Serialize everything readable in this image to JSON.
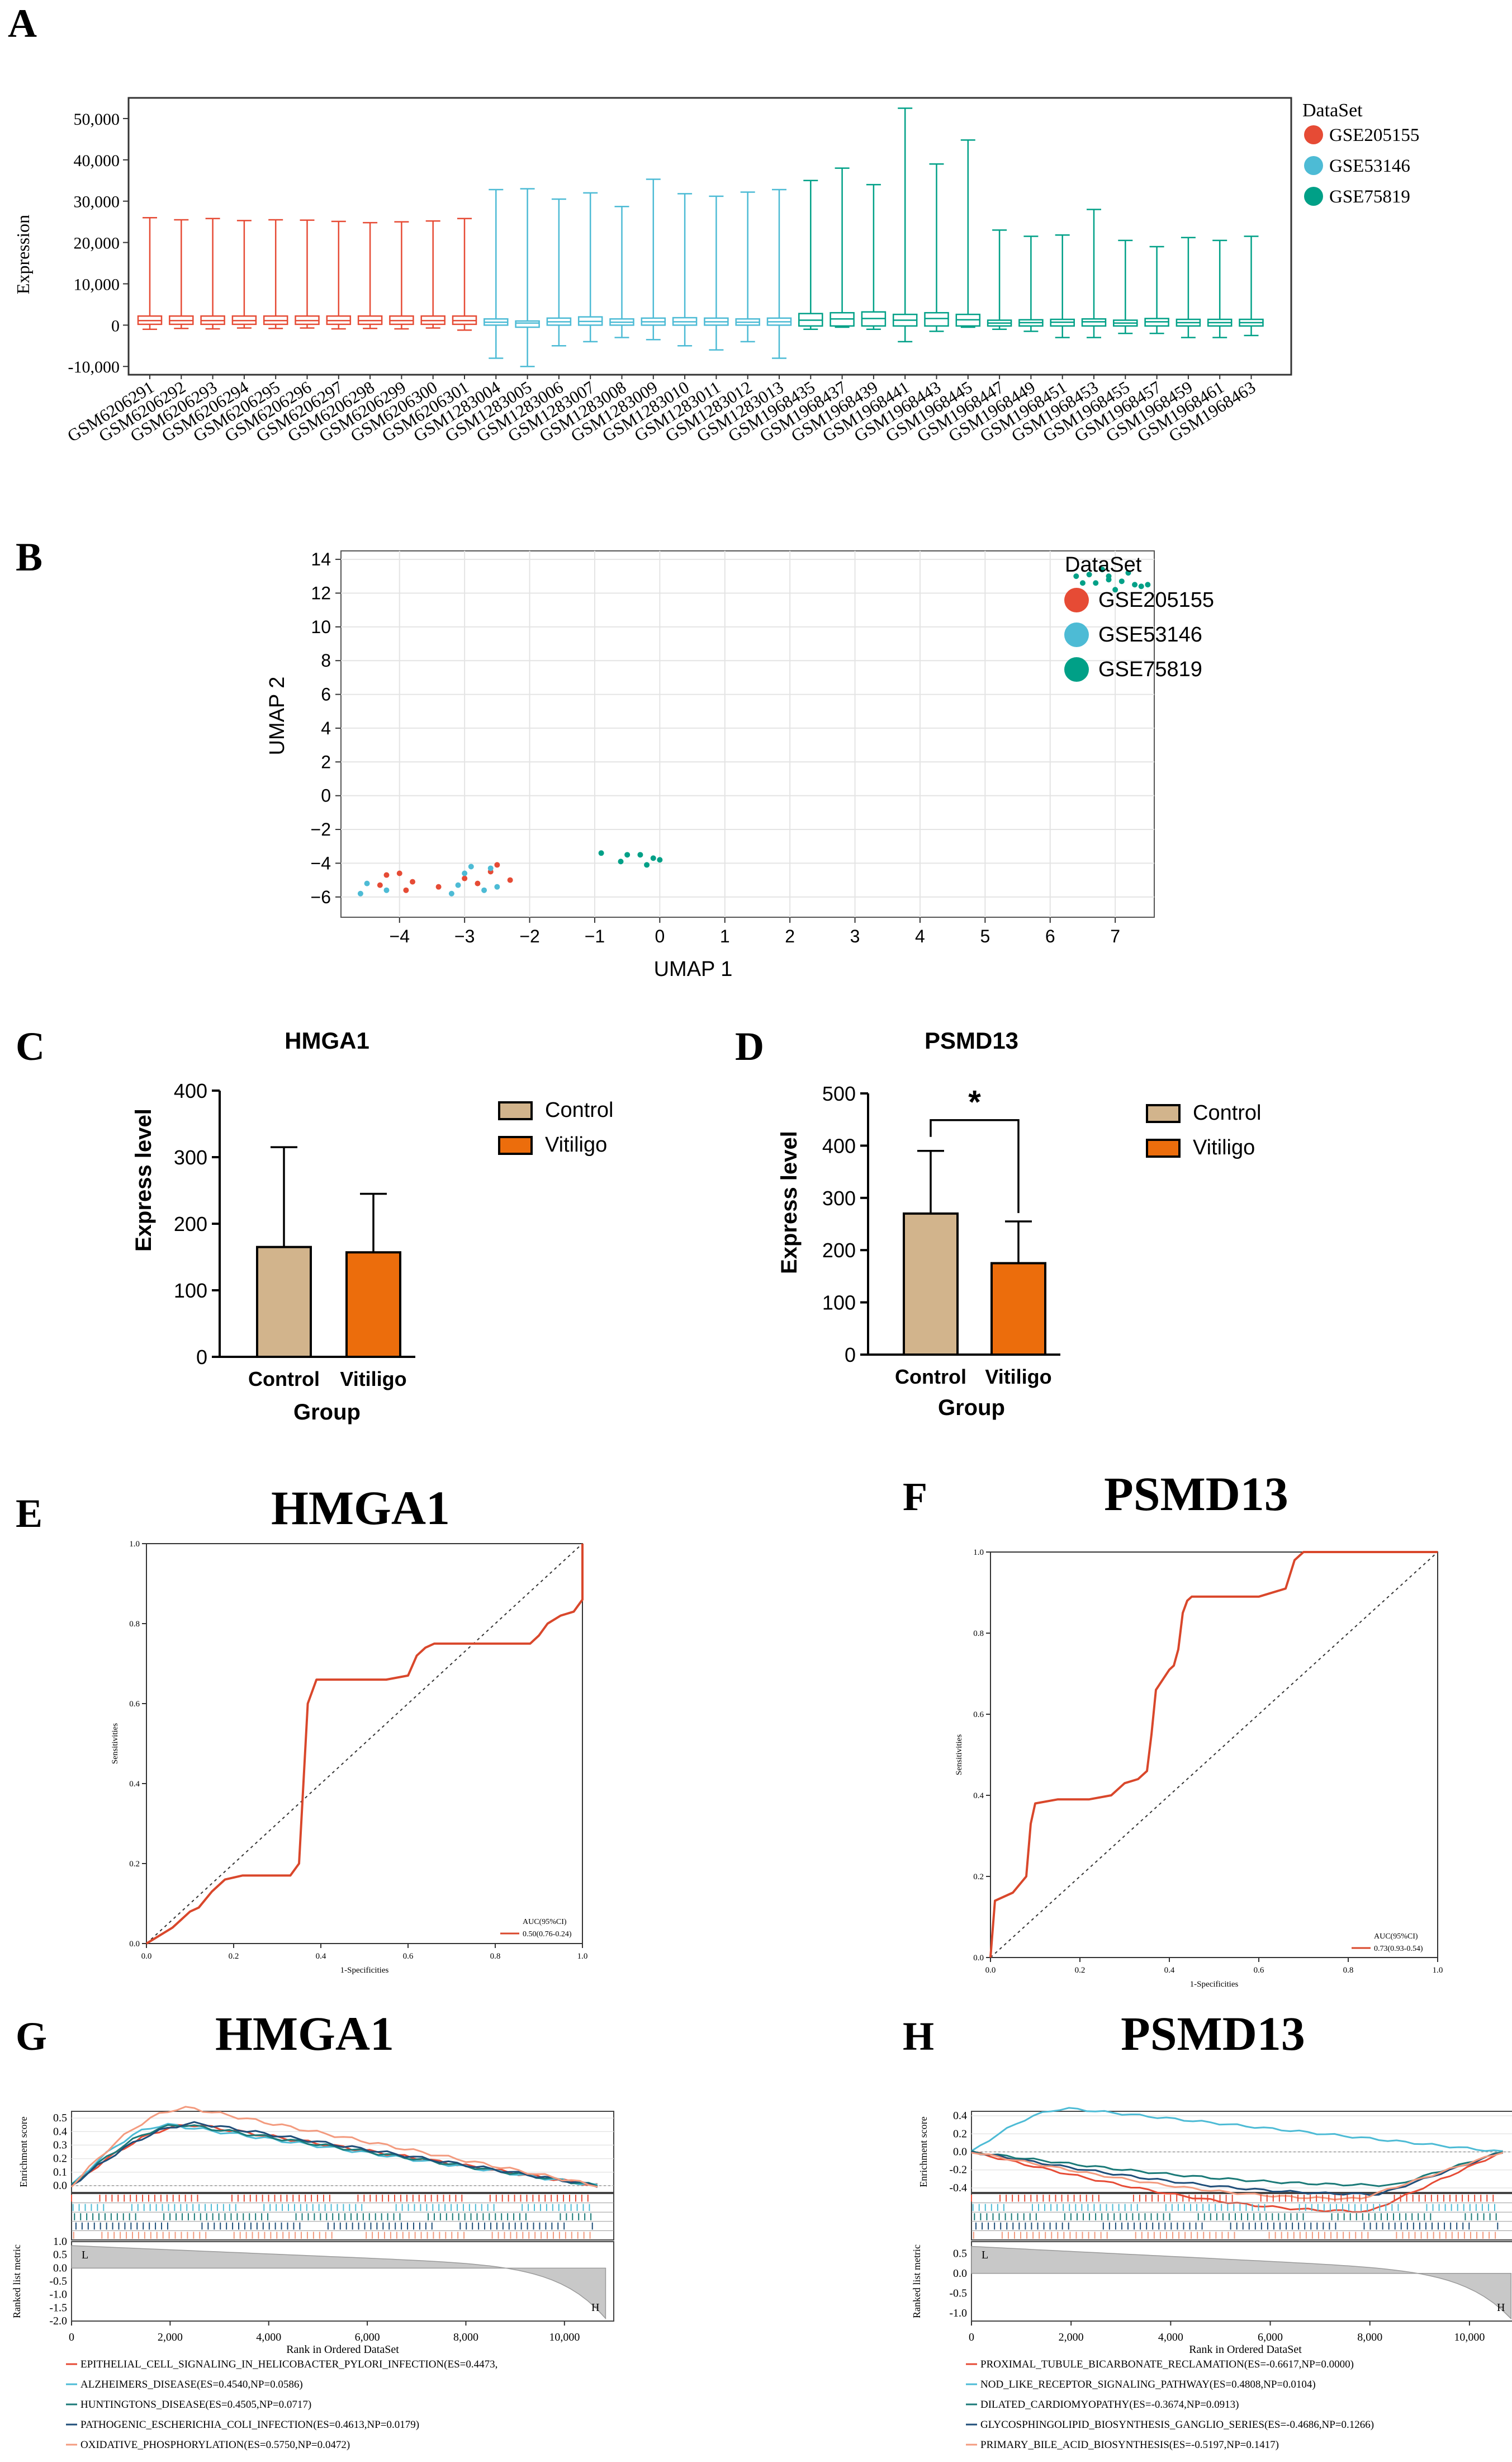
{
  "colors": {
    "red": "#e64b35",
    "blue": "#4dbbd5",
    "teal": "#00a087",
    "tan": "#d2b48c",
    "orange": "#ec6d0c",
    "roc": "#d9472b",
    "gsea": [
      "#e64b35",
      "#4dbbd5",
      "#1b7a78",
      "#1f4e79",
      "#f39b7f"
    ]
  },
  "panels": {
    "A": "A",
    "B": "B",
    "C": "C",
    "D": "D",
    "E": "E",
    "F": "F",
    "G": "G",
    "H": "H"
  },
  "chart_data": [
    {
      "id": "A",
      "type": "boxplot",
      "ylabel": "Expression",
      "ylim": [
        -12000,
        55000
      ],
      "yticks": [
        -10000,
        0,
        10000,
        20000,
        30000,
        40000,
        50000
      ],
      "ytick_labels": [
        "-10,000",
        "0",
        "10,000",
        "20,000",
        "30,000",
        "40,000",
        "50,000"
      ],
      "legend_title": "DataSet",
      "legend": [
        "GSE205155",
        "GSE53146",
        "GSE75819"
      ],
      "categories": [
        "GSM6206291",
        "GSM6206292",
        "GSM6206293",
        "GSM6206294",
        "GSM6206295",
        "GSM6206296",
        "GSM6206297",
        "GSM6206298",
        "GSM6206299",
        "GSM6206300",
        "GSM6206301",
        "GSM1283004",
        "GSM1283005",
        "GSM1283006",
        "GSM1283007",
        "GSM1283008",
        "GSM1283009",
        "GSM1283010",
        "GSM1283011",
        "GSM1283012",
        "GSM1283013",
        "GSM1968435",
        "GSM1968437",
        "GSM1968439",
        "GSM1968441",
        "GSM1968443",
        "GSM1968445",
        "GSM1968447",
        "GSM1968449",
        "GSM1968451",
        "GSM1968453",
        "GSM1968455",
        "GSM1968457",
        "GSM1968459",
        "GSM1968461",
        "GSM1968463"
      ],
      "groups": [
        0,
        0,
        0,
        0,
        0,
        0,
        0,
        0,
        0,
        0,
        0,
        1,
        1,
        1,
        1,
        1,
        1,
        1,
        1,
        1,
        1,
        2,
        2,
        2,
        2,
        2,
        2,
        2,
        2,
        2,
        2,
        2,
        2,
        2,
        2,
        2
      ],
      "whisker_low": [
        -1000,
        -800,
        -900,
        -700,
        -800,
        -700,
        -900,
        -800,
        -900,
        -700,
        -1200,
        -8000,
        -10000,
        -5000,
        -4000,
        -3000,
        -3500,
        -5000,
        -6000,
        -4000,
        -8000,
        -1000,
        -500,
        -1000,
        -4000,
        -1500,
        -500,
        -1000,
        -1500,
        -3000,
        -3000,
        -2000,
        -2000,
        -3000,
        -3000,
        -2500
      ],
      "q1": [
        200,
        200,
        200,
        200,
        200,
        200,
        200,
        200,
        200,
        200,
        200,
        0,
        -500,
        0,
        0,
        0,
        0,
        0,
        0,
        0,
        0,
        -200,
        -200,
        -200,
        -200,
        -200,
        -200,
        -200,
        -200,
        -200,
        -200,
        -200,
        -200,
        -200,
        -200,
        -200
      ],
      "median": [
        1100,
        1100,
        1100,
        1100,
        1100,
        1100,
        1100,
        1100,
        1100,
        1100,
        1100,
        700,
        500,
        800,
        900,
        700,
        800,
        800,
        800,
        700,
        800,
        1200,
        1500,
        1600,
        1200,
        1600,
        1300,
        500,
        600,
        700,
        800,
        500,
        800,
        600,
        600,
        600
      ],
      "q3": [
        2200,
        2200,
        2200,
        2200,
        2200,
        2200,
        2200,
        2200,
        2200,
        2200,
        2200,
        1500,
        1000,
        1700,
        2000,
        1500,
        1700,
        1800,
        1700,
        1500,
        1700,
        2800,
        3000,
        3200,
        2600,
        3000,
        2600,
        1200,
        1300,
        1400,
        1500,
        1200,
        1600,
        1400,
        1400,
        1400
      ],
      "whisker_high": [
        26000,
        25500,
        25800,
        25300,
        25500,
        25400,
        25100,
        24800,
        25000,
        25200,
        25800,
        32800,
        33000,
        30500,
        32000,
        28700,
        35300,
        31800,
        31200,
        32200,
        32800,
        35000,
        38000,
        34000,
        52500,
        39000,
        44800,
        23000,
        21500,
        21800,
        28000,
        20500,
        19000,
        21200,
        20500,
        21500
      ]
    },
    {
      "id": "B",
      "type": "scatter",
      "xlabel": "UMAP 1",
      "ylabel": "UMAP 2",
      "xlim": [
        -4.9,
        7.6
      ],
      "ylim": [
        -7.2,
        14.5
      ],
      "xticks": [
        -4,
        -3,
        -2,
        -1,
        0,
        1,
        2,
        3,
        4,
        5,
        6,
        7
      ],
      "yticks": [
        -6,
        -4,
        -2,
        0,
        2,
        4,
        6,
        8,
        10,
        12,
        14
      ],
      "legend_title": "DataSet",
      "legend": [
        "GSE205155",
        "GSE53146",
        "GSE75819"
      ],
      "series": [
        {
          "name": "GSE205155",
          "points": [
            [
              -4.2,
              -4.7
            ],
            [
              -4.0,
              -4.6
            ],
            [
              -4.3,
              -5.3
            ],
            [
              -3.9,
              -5.6
            ],
            [
              -3.8,
              -5.1
            ],
            [
              -3.4,
              -5.4
            ],
            [
              -3.0,
              -4.9
            ],
            [
              -2.8,
              -5.2
            ],
            [
              -2.6,
              -4.5
            ],
            [
              -2.5,
              -4.1
            ],
            [
              -2.3,
              -5.0
            ]
          ]
        },
        {
          "name": "GSE53146",
          "points": [
            [
              -4.6,
              -5.8
            ],
            [
              -4.2,
              -5.6
            ],
            [
              -3.1,
              -5.3
            ],
            [
              -2.9,
              -4.2
            ],
            [
              -2.7,
              -5.6
            ],
            [
              -3.2,
              -5.8
            ],
            [
              -2.5,
              -5.4
            ],
            [
              -4.5,
              -5.2
            ],
            [
              -3.0,
              -4.6
            ],
            [
              -2.6,
              -4.3
            ]
          ]
        },
        {
          "name": "GSE75819",
          "points": [
            [
              -0.9,
              -3.4
            ],
            [
              -0.5,
              -3.5
            ],
            [
              -0.6,
              -3.9
            ],
            [
              -0.2,
              -4.1
            ],
            [
              -0.1,
              -3.7
            ],
            [
              0.0,
              -3.8
            ],
            [
              -0.3,
              -3.5
            ],
            [
              6.4,
              13.0
            ],
            [
              6.6,
              13.1
            ],
            [
              6.8,
              13.4
            ],
            [
              6.9,
              12.8
            ],
            [
              7.1,
              12.7
            ],
            [
              7.2,
              13.2
            ],
            [
              7.3,
              12.5
            ],
            [
              6.7,
              12.6
            ],
            [
              7.4,
              12.4
            ],
            [
              6.9,
              13.0
            ],
            [
              6.5,
              12.6
            ],
            [
              7.0,
              12.2
            ],
            [
              7.5,
              12.5
            ]
          ]
        }
      ]
    },
    {
      "id": "C",
      "type": "bar",
      "title": "HMGA1",
      "xlabel": "Group",
      "ylabel": "Express level",
      "categories": [
        "Control",
        "Vitiligo"
      ],
      "values": [
        165,
        157
      ],
      "errors": [
        150,
        88
      ],
      "ylim": [
        0,
        400
      ],
      "yticks": [
        0,
        100,
        200,
        300,
        400
      ],
      "legend": [
        "Control",
        "Vitiligo"
      ]
    },
    {
      "id": "D",
      "type": "bar",
      "title": "PSMD13",
      "xlabel": "Group",
      "ylabel": "Express level",
      "categories": [
        "Control",
        "Vitiligo"
      ],
      "values": [
        270,
        175
      ],
      "errors": [
        120,
        80
      ],
      "ylim": [
        0,
        500
      ],
      "yticks": [
        0,
        100,
        200,
        300,
        400,
        500
      ],
      "significance": "*",
      "legend": [
        "Control",
        "Vitiligo"
      ]
    },
    {
      "id": "E",
      "type": "line",
      "title": "HMGA1",
      "xlabel": "1-Specificities",
      "ylabel": "Sensitivities",
      "xlim": [
        0,
        1
      ],
      "ylim": [
        0,
        1
      ],
      "xticks": [
        0.0,
        0.2,
        0.4,
        0.6,
        0.8,
        1.0
      ],
      "yticks": [
        0.0,
        0.2,
        0.4,
        0.6,
        0.8,
        1.0
      ],
      "tick_labels": [
        "0.0",
        "0.2",
        "0.4",
        "0.6",
        "0.8",
        "1.0"
      ],
      "legend_title": "AUC(95%CI)",
      "legend": "0.50(0.76-0.24)",
      "x": [
        0,
        0.06,
        0.08,
        0.1,
        0.12,
        0.15,
        0.18,
        0.22,
        0.28,
        0.33,
        0.35,
        0.36,
        0.37,
        0.39,
        0.45,
        0.55,
        0.6,
        0.62,
        0.64,
        0.66,
        0.72,
        0.82,
        0.88,
        0.9,
        0.92,
        0.95,
        0.98,
        1.0,
        1.0
      ],
      "y": [
        0,
        0.04,
        0.06,
        0.08,
        0.09,
        0.13,
        0.16,
        0.17,
        0.17,
        0.17,
        0.2,
        0.4,
        0.6,
        0.66,
        0.66,
        0.66,
        0.67,
        0.72,
        0.74,
        0.75,
        0.75,
        0.75,
        0.75,
        0.77,
        0.8,
        0.82,
        0.83,
        0.86,
        1.0
      ]
    },
    {
      "id": "F",
      "type": "line",
      "title": "PSMD13",
      "xlabel": "1-Specificities",
      "ylabel": "Sensitivities",
      "xlim": [
        0,
        1
      ],
      "ylim": [
        0,
        1
      ],
      "xticks": [
        0.0,
        0.2,
        0.4,
        0.6,
        0.8,
        1.0
      ],
      "yticks": [
        0.0,
        0.2,
        0.4,
        0.6,
        0.8,
        1.0
      ],
      "tick_labels": [
        "0.0",
        "0.2",
        "0.4",
        "0.6",
        "0.8",
        "1.0"
      ],
      "legend_title": "AUC(95%CI)",
      "legend": "0.73(0.93-0.54)",
      "x": [
        0,
        0.01,
        0.05,
        0.08,
        0.09,
        0.1,
        0.15,
        0.22,
        0.27,
        0.3,
        0.33,
        0.35,
        0.36,
        0.37,
        0.4,
        0.41,
        0.42,
        0.43,
        0.44,
        0.45,
        0.5,
        0.6,
        0.66,
        0.68,
        0.7,
        0.85,
        1.0
      ],
      "y": [
        0,
        0.14,
        0.16,
        0.2,
        0.33,
        0.38,
        0.39,
        0.39,
        0.4,
        0.43,
        0.44,
        0.46,
        0.55,
        0.66,
        0.71,
        0.72,
        0.76,
        0.85,
        0.88,
        0.89,
        0.89,
        0.89,
        0.91,
        0.98,
        1.0,
        1.0,
        1.0
      ]
    },
    {
      "id": "G",
      "type": "line",
      "title": "HMGA1",
      "xlabel": "Rank in Ordered DataSet",
      "ylabel": "Enrichment score",
      "ylabel2": "Ranked list metric",
      "xlim": [
        0,
        11000
      ],
      "xticks": [
        0,
        2000,
        4000,
        6000,
        8000,
        10000
      ],
      "xtick_labels": [
        "0",
        "2,000",
        "4,000",
        "6,000",
        "8,000",
        "10,000"
      ],
      "es_ticks": [
        "0.5",
        "0.4",
        "0.3",
        "0.2",
        "0.1",
        "0.0"
      ],
      "metric_ticks": [
        "1.0",
        "0.5",
        "0.0",
        "-0.5",
        "-1.0",
        "-1.5",
        "-2.0"
      ],
      "metric_range": [
        1.0,
        -2.0
      ],
      "end_labels": [
        "L",
        "H"
      ],
      "series": [
        {
          "name": "EPITHELIAL_CELL_SIGNALING_IN_HELICOBACTER_PYLORI_INFECTION(ES=0.4473,",
          "peak": 0.45,
          "peak_x": 2500
        },
        {
          "name": "ALZHEIMERS_DISEASE(ES=0.4540,NP=0.0586)",
          "peak": 0.45,
          "peak_x": 2000
        },
        {
          "name": "HUNTINGTONS_DISEASE(ES=0.4505,NP=0.0717)",
          "peak": 0.45,
          "peak_x": 2300
        },
        {
          "name": "PATHOGENIC_ESCHERICHIA_COLI_INFECTION(ES=0.4613,NP=0.0179)",
          "peak": 0.46,
          "peak_x": 2600
        },
        {
          "name": "OXIDATIVE_PHOSPHORYLATION(ES=0.5750,NP=0.0472)",
          "peak": 0.575,
          "peak_x": 2400
        }
      ]
    },
    {
      "id": "H",
      "type": "line",
      "title": "PSMD13",
      "xlabel": "Rank in Ordered DataSet",
      "ylabel": "Enrichment score",
      "ylabel2": "Ranked list metric",
      "xlim": [
        0,
        11000
      ],
      "xticks": [
        0,
        2000,
        4000,
        6000,
        8000,
        10000
      ],
      "xtick_labels": [
        "0",
        "2,000",
        "4,000",
        "6,000",
        "8,000",
        "10,000"
      ],
      "es_ticks": [
        "0.4",
        "0.2",
        "0.0",
        "-0.2",
        "-0.4"
      ],
      "metric_ticks": [
        "0.5",
        "0.0",
        "-0.5",
        "-1.0"
      ],
      "metric_range": [
        0.8,
        -1.2
      ],
      "end_labels": [
        "L",
        "H"
      ],
      "series": [
        {
          "name": "PROXIMAL_TUBULE_BICARBONATE_RECLAMATION(ES=-0.6617,NP=0.0000)",
          "peak": -0.66,
          "peak_x": 8000
        },
        {
          "name": "NOD_LIKE_RECEPTOR_SIGNALING_PATHWAY(ES=0.4808,NP=0.0104)",
          "peak": 0.48,
          "peak_x": 2000
        },
        {
          "name": "DILATED_CARDIOMYOPATHY(ES=-0.3674,NP=0.0913)",
          "peak": -0.37,
          "peak_x": 8500
        },
        {
          "name": "GLYCOSPHINGOLIPID_BIOSYNTHESIS_GANGLIO_SERIES(ES=-0.4686,NP=0.1266)",
          "peak": -0.47,
          "peak_x": 8200
        },
        {
          "name": "PRIMARY_BILE_ACID_BIOSYNTHESIS(ES=-0.5197,NP=0.1417)",
          "peak": -0.52,
          "peak_x": 7800
        }
      ]
    }
  ]
}
